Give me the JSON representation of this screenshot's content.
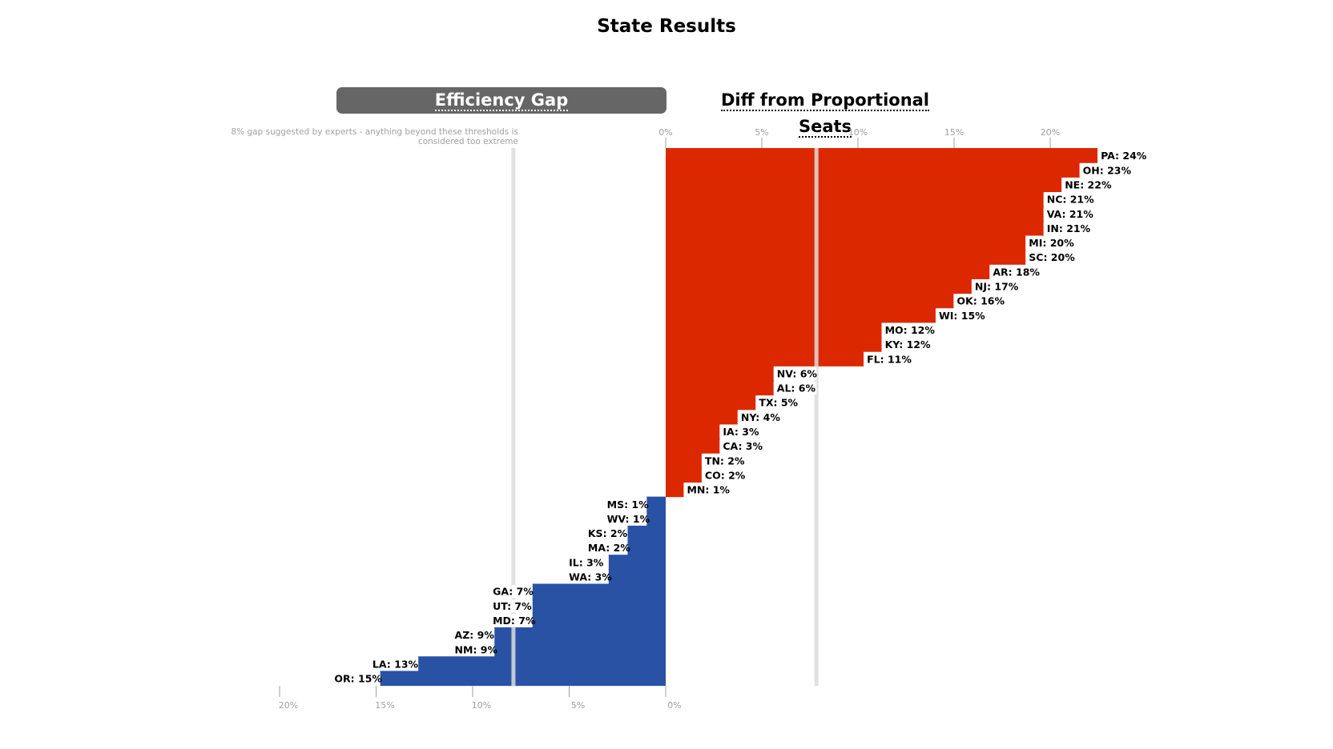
{
  "title": "State Results",
  "tabs": [
    {
      "label": "Efficiency Gap",
      "active": true
    },
    {
      "label": "Diff from Proportional Seats",
      "active": false
    }
  ],
  "threshold_note": "8% gap suggested by experts - anything beyond these thresholds is considered too extreme",
  "colors": {
    "republican": "#dc2800",
    "democratic": "#2a52a4",
    "threshold_line": "#dcdcdc",
    "axis_text": "#a0a0a0"
  },
  "chart_data": {
    "type": "bar",
    "orientation": "horizontal-diverging",
    "threshold_pct": 8,
    "top_axis": {
      "range": [
        0,
        24
      ],
      "ticks": [
        "0%",
        "5%",
        "10%",
        "15%",
        "20%"
      ]
    },
    "bottom_axis": {
      "range": [
        0,
        20
      ],
      "ticks": [
        "20%",
        "15%",
        "10%",
        "5%",
        "0%"
      ]
    },
    "series": [
      {
        "side": "right",
        "color": "#dc2800",
        "values": [
          {
            "state": "PA",
            "value": 24,
            "label": "PA: 24%"
          },
          {
            "state": "OH",
            "value": 23,
            "label": "OH: 23%"
          },
          {
            "state": "NE",
            "value": 22,
            "label": "NE: 22%"
          },
          {
            "state": "NC",
            "value": 21,
            "label": "NC: 21%"
          },
          {
            "state": "VA",
            "value": 21,
            "label": "VA: 21%"
          },
          {
            "state": "IN",
            "value": 21,
            "label": "IN: 21%"
          },
          {
            "state": "MI",
            "value": 20,
            "label": "MI: 20%"
          },
          {
            "state": "SC",
            "value": 20,
            "label": "SC: 20%"
          },
          {
            "state": "AR",
            "value": 18,
            "label": "AR: 18%"
          },
          {
            "state": "NJ",
            "value": 17,
            "label": "NJ: 17%"
          },
          {
            "state": "OK",
            "value": 16,
            "label": "OK: 16%"
          },
          {
            "state": "WI",
            "value": 15,
            "label": "WI: 15%"
          },
          {
            "state": "MO",
            "value": 12,
            "label": "MO: 12%"
          },
          {
            "state": "KY",
            "value": 12,
            "label": "KY: 12%"
          },
          {
            "state": "FL",
            "value": 11,
            "label": "FL: 11%"
          },
          {
            "state": "NV",
            "value": 6,
            "label": "NV: 6%"
          },
          {
            "state": "AL",
            "value": 6,
            "label": "AL: 6%"
          },
          {
            "state": "TX",
            "value": 5,
            "label": "TX: 5%"
          },
          {
            "state": "NY",
            "value": 4,
            "label": "NY: 4%"
          },
          {
            "state": "IA",
            "value": 3,
            "label": "IA: 3%"
          },
          {
            "state": "CA",
            "value": 3,
            "label": "CA: 3%"
          },
          {
            "state": "TN",
            "value": 2,
            "label": "TN: 2%"
          },
          {
            "state": "CO",
            "value": 2,
            "label": "CO: 2%"
          },
          {
            "state": "MN",
            "value": 1,
            "label": "MN: 1%"
          }
        ]
      },
      {
        "side": "left",
        "color": "#2a52a4",
        "values": [
          {
            "state": "MS",
            "value": 1,
            "label": "MS: 1%"
          },
          {
            "state": "WV",
            "value": 1,
            "label": "WV: 1%"
          },
          {
            "state": "KS",
            "value": 2,
            "label": "KS: 2%"
          },
          {
            "state": "MA",
            "value": 2,
            "label": "MA: 2%"
          },
          {
            "state": "IL",
            "value": 3,
            "label": "IL: 3%"
          },
          {
            "state": "WA",
            "value": 3,
            "label": "WA: 3%"
          },
          {
            "state": "GA",
            "value": 7,
            "label": "GA: 7%"
          },
          {
            "state": "UT",
            "value": 7,
            "label": "UT: 7%"
          },
          {
            "state": "MD",
            "value": 7,
            "label": "MD: 7%"
          },
          {
            "state": "AZ",
            "value": 9,
            "label": "AZ: 9%"
          },
          {
            "state": "NM",
            "value": 9,
            "label": "NM: 9%"
          },
          {
            "state": "LA",
            "value": 13,
            "label": "LA: 13%"
          },
          {
            "state": "OR",
            "value": 15,
            "label": "OR: 15%"
          }
        ]
      }
    ]
  }
}
